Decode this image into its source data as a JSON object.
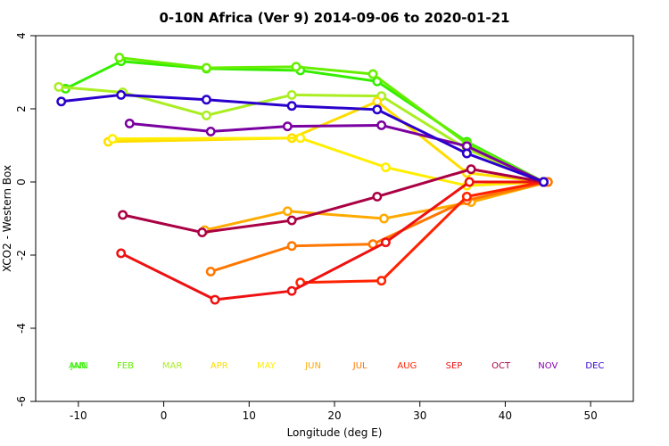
{
  "chart_data": {
    "type": "line",
    "title": "0-10N Africa (Ver 9)   2014-09-06 to 2020-01-21",
    "xlabel": "Longitude (deg E)",
    "ylabel": "XCO2 - Western Box",
    "xlim": [
      -15,
      55
    ],
    "ylim": [
      -6,
      4
    ],
    "xticks": [
      -10,
      0,
      10,
      20,
      30,
      40,
      50
    ],
    "yticks": [
      -6,
      -4,
      -2,
      0,
      2,
      4
    ],
    "grid": false,
    "legend_row_y": -5.0,
    "legend": [
      {
        "label": "JAN",
        "x": -10,
        "color": "#33ee00"
      },
      {
        "label": "ANN",
        "x": -10,
        "color": "#33ee00"
      },
      {
        "label": "FEB",
        "x": -4.5,
        "color": "#66ee00"
      },
      {
        "label": "MAR",
        "x": 1,
        "color": "#aaee22"
      },
      {
        "label": "APR",
        "x": 6.5,
        "color": "#ffdd00"
      },
      {
        "label": "MAY",
        "x": 12,
        "color": "#ffee00"
      },
      {
        "label": "JUN",
        "x": 17.5,
        "color": "#ffaa00"
      },
      {
        "label": "JUL",
        "x": 23,
        "color": "#ff7700"
      },
      {
        "label": "AUG",
        "x": 28.5,
        "color": "#ff2200"
      },
      {
        "label": "SEP",
        "x": 34,
        "color": "#ee1111"
      },
      {
        "label": "OCT",
        "x": 39.5,
        "color": "#aa0044"
      },
      {
        "label": "NOV",
        "x": 45,
        "color": "#8800aa"
      },
      {
        "label": "DEC",
        "x": 50.5,
        "color": "#3300cc"
      }
    ],
    "series": [
      {
        "name": "JAN",
        "color": "#33ee00",
        "x": [
          -11.5,
          -5,
          5,
          16,
          25,
          35.5,
          44.5
        ],
        "y": [
          2.55,
          3.3,
          3.1,
          3.05,
          2.75,
          1.1,
          0.0
        ]
      },
      {
        "name": "FEB",
        "color": "#66ee00",
        "x": [
          -5.2,
          5,
          15.5,
          24.5,
          35.5,
          44.5
        ],
        "y": [
          3.4,
          3.12,
          3.15,
          2.95,
          1.05,
          0.0
        ]
      },
      {
        "name": "MAR",
        "color": "#aaee22",
        "x": [
          -12.3,
          -4.8,
          5,
          15,
          25.5,
          35.5,
          44.5
        ],
        "y": [
          2.6,
          2.45,
          1.82,
          2.38,
          2.35,
          0.9,
          0.0
        ]
      },
      {
        "name": "APR",
        "color": "#ffdd00",
        "x": [
          -6.5,
          15,
          25,
          35.5,
          44.5
        ],
        "y": [
          1.1,
          1.2,
          2.2,
          0.25,
          0.0
        ]
      },
      {
        "name": "MAY",
        "color": "#ffee00",
        "x": [
          -6,
          16,
          26,
          35.5,
          44.5
        ],
        "y": [
          1.18,
          1.2,
          0.4,
          -0.1,
          0.0
        ]
      },
      {
        "name": "JUN",
        "color": "#ffaa00",
        "x": [
          4.8,
          14.5,
          25.8,
          36,
          45
        ],
        "y": [
          -1.32,
          -0.8,
          -1.0,
          -0.55,
          0.0
        ]
      },
      {
        "name": "JUL",
        "color": "#ff7700",
        "x": [
          5.5,
          15,
          24.5,
          35.5,
          45
        ],
        "y": [
          -2.45,
          -1.75,
          -1.7,
          -0.5,
          0.0
        ]
      },
      {
        "name": "AUG",
        "color": "#ff2200",
        "x": [
          16,
          25.5,
          35.5,
          44.5
        ],
        "y": [
          -2.75,
          -2.7,
          -0.4,
          0.0
        ]
      },
      {
        "name": "SEP",
        "color": "#ee1111",
        "x": [
          -5,
          6,
          15,
          26,
          35.8,
          44.5
        ],
        "y": [
          -1.95,
          -3.22,
          -2.98,
          -1.65,
          0.0,
          0.0
        ]
      },
      {
        "name": "OCT",
        "color": "#aa0044",
        "x": [
          -4.8,
          4.5,
          15,
          25,
          36,
          44.5
        ],
        "y": [
          -0.9,
          -1.38,
          -1.05,
          -0.4,
          0.35,
          0.0
        ]
      },
      {
        "name": "NOV",
        "color": "#7a00a0",
        "x": [
          -4,
          5.5,
          14.5,
          25.5,
          35.5,
          44.5
        ],
        "y": [
          1.6,
          1.38,
          1.52,
          1.55,
          0.98,
          0.0
        ]
      },
      {
        "name": "DEC",
        "color": "#2a00cc",
        "x": [
          -12,
          -5,
          5,
          15,
          25,
          35.5,
          44.5
        ],
        "y": [
          2.2,
          2.38,
          2.25,
          2.08,
          1.98,
          0.78,
          0.0
        ]
      }
    ]
  }
}
